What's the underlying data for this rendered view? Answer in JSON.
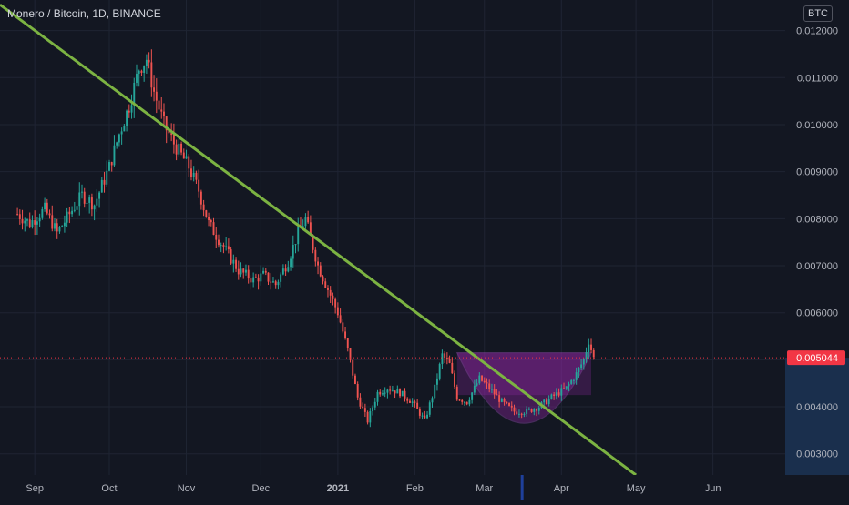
{
  "header": {
    "symbol_label": "Monero / Bitcoin, 1D, BINANCE",
    "currency": "BTC"
  },
  "colors": {
    "background": "#131722",
    "up": "#26a69a",
    "down": "#ef5350",
    "trendline": "#7cb342",
    "cup_pattern": "#9c27b0",
    "price_label": "#f23645",
    "grid": "#1f2433",
    "axis_text": "#b2b5be"
  },
  "chart_data": {
    "type": "candlestick",
    "title": "Monero / Bitcoin, 1D, BINANCE",
    "xlabel": "",
    "ylabel": "",
    "ylim": [
      0.00255,
      0.01265
    ],
    "y_ticks": [
      "0.003000",
      "0.004000",
      "0.005000",
      "0.006000",
      "0.007000",
      "0.008000",
      "0.009000",
      "0.010000",
      "0.011000",
      "0.012000"
    ],
    "y_tick_values": [
      0.003,
      0.004,
      0.005,
      0.006,
      0.007,
      0.008,
      0.009,
      0.01,
      0.011,
      0.012
    ],
    "x_ticks": [
      {
        "label": "Sep",
        "date": "2020-09-01"
      },
      {
        "label": "Oct",
        "date": "2020-10-01"
      },
      {
        "label": "Nov",
        "date": "2020-11-01"
      },
      {
        "label": "Dec",
        "date": "2020-12-01"
      },
      {
        "label": "2021",
        "date": "2021-01-01"
      },
      {
        "label": "Feb",
        "date": "2021-02-01"
      },
      {
        "label": "Mar",
        "date": "2021-03-01"
      },
      {
        "label": "Apr",
        "date": "2021-04-01"
      },
      {
        "label": "May",
        "date": "2021-05-01"
      },
      {
        "label": "Jun",
        "date": "2021-06-01"
      }
    ],
    "last_price": "0.005044",
    "last_price_value": 0.005044,
    "price_path": [
      [
        "2020-08-25",
        0.0081
      ],
      [
        "2020-08-30",
        0.0079
      ],
      [
        "2020-09-05",
        0.0082
      ],
      [
        "2020-09-10",
        0.0077
      ],
      [
        "2020-09-15",
        0.0081
      ],
      [
        "2020-09-20",
        0.0085
      ],
      [
        "2020-09-25",
        0.0083
      ],
      [
        "2020-10-01",
        0.0091
      ],
      [
        "2020-10-05",
        0.0098
      ],
      [
        "2020-10-09",
        0.0104
      ],
      [
        "2020-10-13",
        0.0112
      ],
      [
        "2020-10-16",
        0.0114
      ],
      [
        "2020-10-19",
        0.0107
      ],
      [
        "2020-10-23",
        0.01
      ],
      [
        "2020-10-27",
        0.0096
      ],
      [
        "2020-11-02",
        0.0091
      ],
      [
        "2020-11-06",
        0.0086
      ],
      [
        "2020-11-10",
        0.0079
      ],
      [
        "2020-11-16",
        0.0074
      ],
      [
        "2020-11-22",
        0.0069
      ],
      [
        "2020-11-28",
        0.0067
      ],
      [
        "2020-12-02",
        0.0068
      ],
      [
        "2020-12-07",
        0.0066
      ],
      [
        "2020-12-12",
        0.0071
      ],
      [
        "2020-12-16",
        0.0077
      ],
      [
        "2020-12-19",
        0.008
      ],
      [
        "2020-12-24",
        0.007
      ],
      [
        "2020-12-28",
        0.0065
      ],
      [
        "2021-01-01",
        0.006
      ],
      [
        "2021-01-05",
        0.0052
      ],
      [
        "2021-01-09",
        0.0042
      ],
      [
        "2021-01-13",
        0.0037
      ],
      [
        "2021-01-17",
        0.0043
      ],
      [
        "2021-01-21",
        0.0044
      ],
      [
        "2021-01-26",
        0.0043
      ],
      [
        "2021-01-31",
        0.0041
      ],
      [
        "2021-02-05",
        0.0037
      ],
      [
        "2021-02-09",
        0.0044
      ],
      [
        "2021-02-12",
        0.0051
      ],
      [
        "2021-02-15",
        0.0049
      ],
      [
        "2021-02-18",
        0.0042
      ],
      [
        "2021-02-22",
        0.0041
      ],
      [
        "2021-02-27",
        0.0046
      ],
      [
        "2021-03-03",
        0.0044
      ],
      [
        "2021-03-08",
        0.0041
      ],
      [
        "2021-03-13",
        0.0039
      ],
      [
        "2021-03-18",
        0.0039
      ],
      [
        "2021-03-23",
        0.004
      ],
      [
        "2021-03-28",
        0.0042
      ],
      [
        "2021-04-03",
        0.0044
      ],
      [
        "2021-04-07",
        0.0047
      ],
      [
        "2021-04-10",
        0.005
      ],
      [
        "2021-04-12",
        0.0054
      ],
      [
        "2021-04-14",
        0.00504
      ]
    ],
    "trendline": {
      "start": [
        "2020-08-18",
        0.01255
      ],
      "end": [
        "2021-05-01",
        0.00255
      ]
    },
    "cup_pattern": {
      "start": [
        "2021-02-18",
        0.00515
      ],
      "end": [
        "2021-04-13",
        0.00515
      ],
      "bottom": [
        "2021-03-17",
        0.00365
      ]
    },
    "highlighted_date": "2021-03-16",
    "grid": true,
    "legend": "none"
  }
}
